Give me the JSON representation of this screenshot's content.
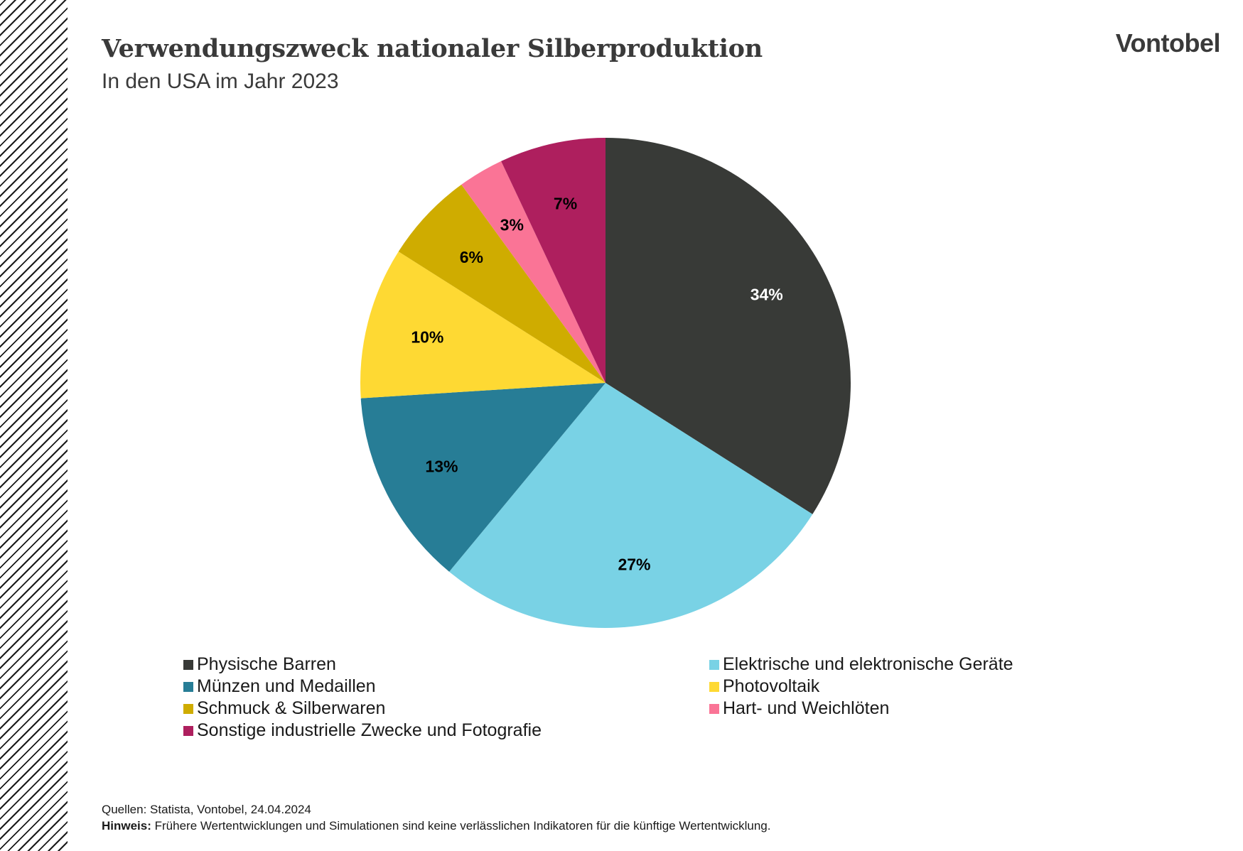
{
  "header": {
    "title": "Verwendungszweck nationaler Silberproduktion",
    "subtitle": "In den USA im Jahr 2023",
    "logo": "Vontobel"
  },
  "chart_data": {
    "type": "pie",
    "title": "Verwendungszweck nationaler Silberproduktion",
    "subtitle": "In den USA im Jahr 2023",
    "start_angle": "12 o'clock, clockwise",
    "legend_position": "bottom",
    "slices": [
      {
        "label": "Physische Barren",
        "value": 34,
        "display": "34%",
        "color": "#383a37",
        "label_color": "#ffffff"
      },
      {
        "label": "Elektrische und elektronische Geräte",
        "value": 27,
        "display": "27%",
        "color": "#79d2e5",
        "label_color": "#000000"
      },
      {
        "label": "Münzen und Medaillen",
        "value": 13,
        "display": "13%",
        "color": "#277d96",
        "label_color": "#000000"
      },
      {
        "label": "Photovoltaik",
        "value": 10,
        "display": "10%",
        "color": "#fed933",
        "label_color": "#000000"
      },
      {
        "label": "Schmuck & Silberwaren",
        "value": 6,
        "display": "6%",
        "color": "#cfac00",
        "label_color": "#000000"
      },
      {
        "label": "Hart- und Weichlöten",
        "value": 3,
        "display": "3%",
        "color": "#fa7496",
        "label_color": "#000000"
      },
      {
        "label": "Sonstige industrielle Zwecke und Fotografie",
        "value": 7,
        "display": "7%",
        "color": "#ae1f5e",
        "label_color": "#000000"
      }
    ]
  },
  "legend": {
    "left": [
      {
        "label": "Physische Barren",
        "color": "#383a37"
      },
      {
        "label": "Münzen und Medaillen",
        "color": "#277d96"
      },
      {
        "label": "Schmuck & Silberwaren",
        "color": "#cfac00"
      },
      {
        "label": "Sonstige industrielle Zwecke und Fotografie",
        "color": "#ae1f5e"
      }
    ],
    "right": [
      {
        "label": "Elektrische und elektronische Geräte",
        "color": "#79d2e5"
      },
      {
        "label": "Photovoltaik",
        "color": "#fed933"
      },
      {
        "label": "Hart- und Weichlöten",
        "color": "#fa7496"
      }
    ]
  },
  "footer": {
    "sources": "Quellen: Statista, Vontobel, 24.04.2024",
    "note_label": "Hinweis:",
    "note_text": " Frühere Wertentwicklungen und Simulationen sind keine verlässlichen Indikatoren für die künftige Wertentwicklung."
  }
}
